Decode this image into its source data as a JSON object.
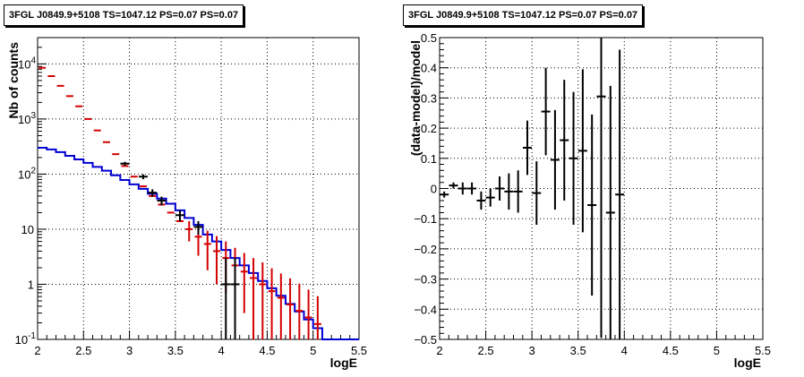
{
  "chart_data": [
    {
      "type": "line",
      "title": "3FGL J0849.9+5108 TS=1047.12 PS=0.07 PS=0.07",
      "xlabel": "logE",
      "ylabel": "Nb of counts",
      "xlim": [
        2,
        5.5
      ],
      "ylim": [
        0.1,
        30000
      ],
      "yscale": "log",
      "grid": true,
      "x_ticks": [
        "2",
        "2.5",
        "3",
        "3.5",
        "4",
        "4.5",
        "5",
        "5.5"
      ],
      "y_ticks": [
        {
          "value": 0.1,
          "base": "10",
          "exp": "-1"
        },
        {
          "value": 1,
          "base": "1",
          "exp": ""
        },
        {
          "value": 10,
          "base": "10",
          "exp": ""
        },
        {
          "value": 100,
          "base": "10",
          "exp": "2"
        },
        {
          "value": 1000,
          "base": "10",
          "exp": "3"
        },
        {
          "value": 10000,
          "base": "10",
          "exp": "4"
        }
      ],
      "bin_edges": [
        2.0,
        2.1,
        2.2,
        2.3,
        2.4,
        2.5,
        2.6,
        2.7,
        2.8,
        2.9,
        3.0,
        3.1,
        3.2,
        3.3,
        3.4,
        3.5,
        3.6,
        3.7,
        3.8,
        3.9,
        4.0,
        4.1,
        4.2,
        4.3,
        4.4,
        4.5,
        4.6,
        4.7,
        4.8,
        4.9,
        5.0,
        5.1,
        5.2,
        5.5
      ],
      "series": [
        {
          "role": "model",
          "color": "#d40000",
          "x": [
            2.05,
            2.15,
            2.25,
            2.35,
            2.45,
            2.55,
            2.65,
            2.75,
            2.85,
            2.95,
            3.05,
            3.15,
            3.25,
            3.35,
            3.45,
            3.55,
            3.65,
            3.75,
            3.85,
            3.95,
            4.05,
            4.15,
            4.25,
            4.35,
            4.45,
            4.55,
            4.65,
            4.75,
            4.85,
            4.95,
            5.05
          ],
          "values": [
            8500,
            6000,
            4000,
            2600,
            1700,
            1000,
            620,
            380,
            230,
            140,
            90,
            60,
            40,
            28,
            20,
            14,
            10,
            7.3,
            5.4,
            4.0,
            3.0,
            2.2,
            1.7,
            1.3,
            1.0,
            0.75,
            0.57,
            0.43,
            0.33,
            0.25,
            0.19
          ],
          "err_low": [
            0,
            0,
            0,
            0,
            0,
            0,
            0,
            0,
            0,
            0,
            0,
            0,
            0,
            0,
            0,
            0,
            4,
            4,
            3.6,
            3.0,
            2.3,
            1.8,
            1.4,
            1.2,
            0.9,
            0.7,
            0.53,
            0.4,
            0.31,
            0.23,
            0.178
          ],
          "err_high": [
            0,
            0,
            0,
            0,
            0,
            0,
            0,
            0,
            0,
            0,
            0,
            0,
            0,
            0,
            0,
            0,
            4,
            4,
            4,
            3.5,
            3.0,
            2.4,
            2.0,
            1.7,
            1.5,
            1.2,
            1.0,
            0.85,
            0.7,
            0.55,
            0.42
          ]
        },
        {
          "role": "component",
          "color": "#0000d4",
          "step_values": [
            300,
            280,
            250,
            215,
            185,
            160,
            135,
            115,
            95,
            78,
            65,
            54,
            44,
            36,
            29,
            22,
            16,
            12,
            8,
            6.0,
            4.2,
            3.0,
            2.2,
            1.6,
            1.15,
            0.85,
            0.62,
            0.44,
            0.32,
            0.23,
            0.16,
            0.1,
            0.1
          ]
        },
        {
          "role": "data",
          "color": "#000000",
          "x": [
            2.95,
            3.15,
            3.25,
            3.35,
            3.55,
            3.75,
            4.05,
            4.15
          ],
          "values": [
            155,
            90,
            46,
            33,
            18,
            11,
            1,
            1
          ],
          "err_low": [
            12,
            9,
            7,
            6,
            4,
            3,
            1,
            1
          ],
          "err_high": [
            12,
            9,
            7,
            6,
            4,
            3,
            2,
            2
          ]
        }
      ]
    },
    {
      "type": "scatter",
      "title": "3FGL J0849.9+5108 TS=1047.12 PS=0.07 PS=0.07",
      "xlabel": "logE",
      "ylabel": "(data-model)/model",
      "xlim": [
        2,
        5.5
      ],
      "ylim": [
        -0.5,
        0.5
      ],
      "grid": true,
      "x_ticks": [
        "2",
        "2.5",
        "3",
        "3.5",
        "4",
        "4.5",
        "5",
        "5.5"
      ],
      "y_ticks": [
        "−0.5",
        "−0.4",
        "−0.3",
        "−0.2",
        "−0.1",
        "0",
        "0.1",
        "0.2",
        "0.3",
        "0.4",
        "0.5"
      ],
      "x": [
        2.05,
        2.15,
        2.25,
        2.35,
        2.45,
        2.55,
        2.65,
        2.75,
        2.85,
        2.95,
        3.05,
        3.15,
        3.25,
        3.35,
        3.45,
        3.55,
        3.65,
        3.75,
        3.85,
        3.95
      ],
      "values": [
        -0.02,
        0.01,
        0.0,
        0.0,
        -0.04,
        -0.03,
        0.0,
        -0.01,
        -0.01,
        0.135,
        -0.015,
        0.255,
        0.095,
        0.16,
        0.1,
        0.125,
        -0.055,
        0.305,
        -0.08,
        -0.02
      ],
      "err_low": [
        0.01,
        0.01,
        0.02,
        0.02,
        0.03,
        0.03,
        0.04,
        0.06,
        0.07,
        0.09,
        0.105,
        0.145,
        0.165,
        0.2,
        0.22,
        0.27,
        0.3,
        0.8,
        0.42,
        0.48
      ],
      "err_high": [
        0.01,
        0.01,
        0.02,
        0.02,
        0.03,
        0.03,
        0.04,
        0.06,
        0.07,
        0.09,
        0.105,
        0.145,
        0.165,
        0.2,
        0.22,
        0.27,
        0.3,
        0.8,
        0.42,
        0.48
      ]
    }
  ]
}
